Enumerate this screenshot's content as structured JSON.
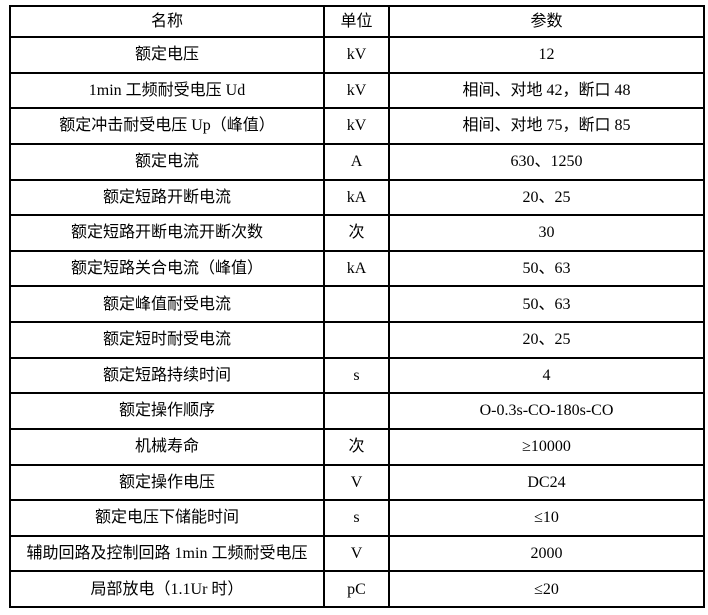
{
  "table": {
    "headers": [
      "名称",
      "单位",
      "参数"
    ],
    "rows": [
      {
        "name": "额定电压",
        "unit": "kV",
        "value": "12"
      },
      {
        "name": "1min 工频耐受电压 Ud",
        "unit": "kV",
        "value": "相间、对地 42，断口 48"
      },
      {
        "name": "额定冲击耐受电压 Up（峰值）",
        "unit": "kV",
        "value": "相间、对地 75，断口 85"
      },
      {
        "name": "额定电流",
        "unit": "A",
        "value": "630、1250"
      },
      {
        "name": "额定短路开断电流",
        "unit": "kA",
        "value": "20、25"
      },
      {
        "name": "额定短路开断电流开断次数",
        "unit": "次",
        "value": "30"
      },
      {
        "name": "额定短路关合电流（峰值）",
        "unit": "kA",
        "value": "50、63"
      },
      {
        "name": "额定峰值耐受电流",
        "unit": "",
        "value": "50、63"
      },
      {
        "name": "额定短时耐受电流",
        "unit": "",
        "value": "20、25"
      },
      {
        "name": "额定短路持续时间",
        "unit": "s",
        "value": "4"
      },
      {
        "name": "额定操作顺序",
        "unit": "",
        "value": "O-0.3s-CO-180s-CO"
      },
      {
        "name": "机械寿命",
        "unit": "次",
        "value": "≥10000"
      },
      {
        "name": "额定操作电压",
        "unit": "V",
        "value": "DC24"
      },
      {
        "name": "额定电压下储能时间",
        "unit": "s",
        "value": "≤10"
      },
      {
        "name": "辅助回路及控制回路 1min 工频耐受电压",
        "unit": "V",
        "value": "2000"
      },
      {
        "name": "局部放电（1.1Ur 时）",
        "unit": "pC",
        "value": "≤20"
      }
    ]
  },
  "colors": {
    "border": "#000000",
    "text": "#000000",
    "background": "#ffffff"
  }
}
